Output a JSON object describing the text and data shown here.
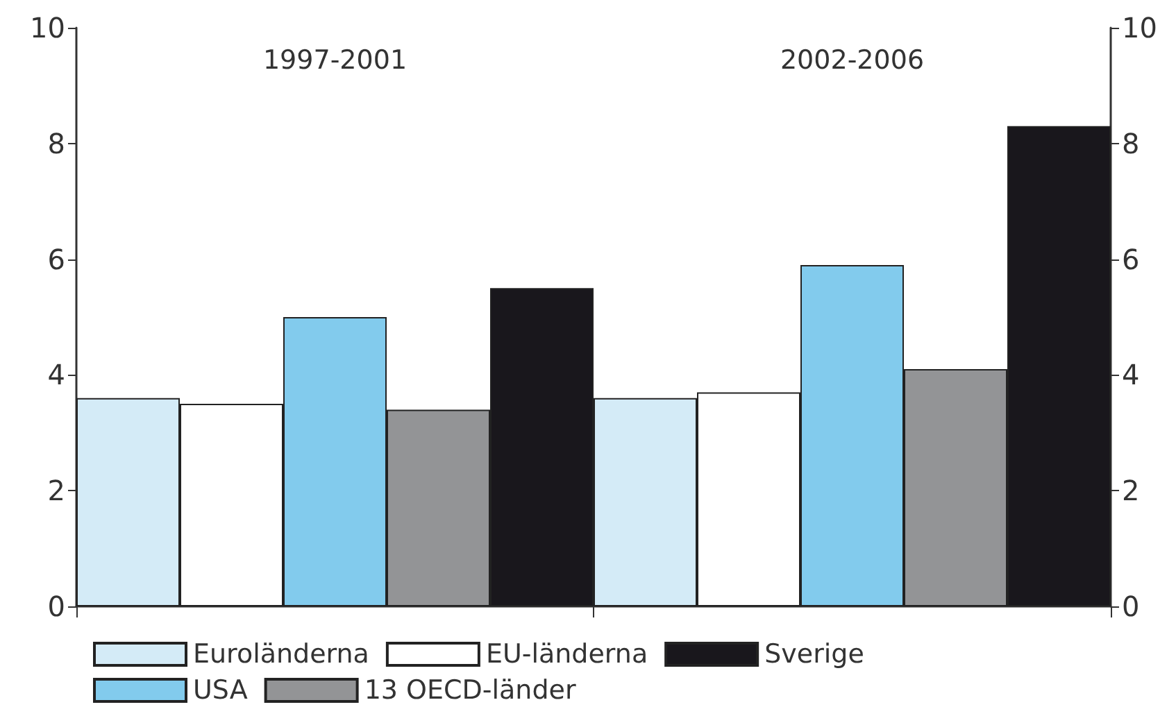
{
  "chart_data": {
    "type": "bar",
    "categories": [
      "1997-2001",
      "2002-2006"
    ],
    "series": [
      {
        "name": "Euroländerna",
        "color": "#d4ebf7",
        "values": [
          3.6,
          3.6
        ]
      },
      {
        "name": "EU-länderna",
        "color": "#ffffff",
        "values": [
          3.5,
          3.7
        ]
      },
      {
        "name": "USA",
        "color": "#82cbed",
        "values": [
          5.0,
          5.9
        ]
      },
      {
        "name": "13 OECD-länder",
        "color": "#939496",
        "values": [
          3.4,
          4.1
        ]
      },
      {
        "name": "Sverige",
        "color": "#19171c",
        "values": [
          5.5,
          8.3
        ]
      }
    ],
    "ylim": [
      0,
      10
    ],
    "yticks": [
      0,
      2,
      4,
      6,
      8,
      10
    ],
    "y2lim": [
      0,
      10
    ],
    "y2ticks": [
      0,
      2,
      4,
      6,
      8,
      10
    ],
    "grid": false,
    "legend": "bottom"
  }
}
